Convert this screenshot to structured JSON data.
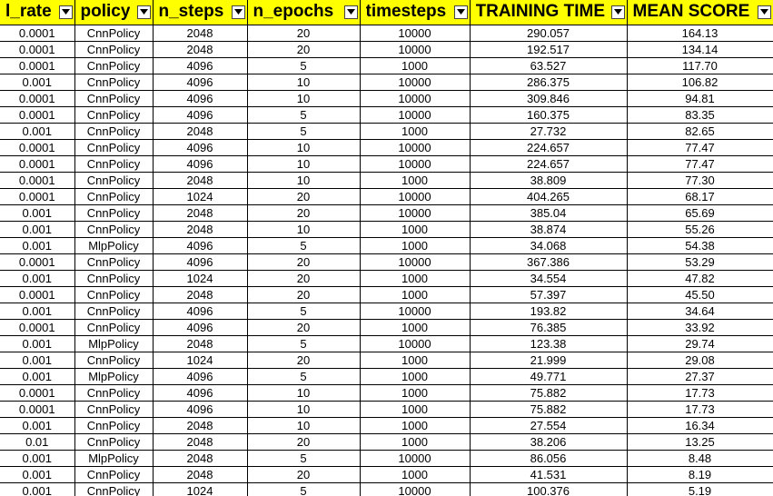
{
  "columns": [
    {
      "label": "l_rate",
      "name": "col-l-rate"
    },
    {
      "label": "policy",
      "name": "col-policy"
    },
    {
      "label": "n_steps",
      "name": "col-n-steps"
    },
    {
      "label": "n_epochs",
      "name": "col-n-epochs"
    },
    {
      "label": "timesteps",
      "name": "col-timesteps"
    },
    {
      "label": "TRAINING TIME",
      "name": "col-training-time"
    },
    {
      "label": "MEAN SCORE",
      "name": "col-mean-score"
    }
  ],
  "filter_icon": "dropdown-arrow-icon",
  "header_color": "#ffff00",
  "rows": [
    [
      "0.0001",
      "CnnPolicy",
      "2048",
      "20",
      "10000",
      "290.057",
      "164.13"
    ],
    [
      "0.0001",
      "CnnPolicy",
      "2048",
      "20",
      "10000",
      "192.517",
      "134.14"
    ],
    [
      "0.0001",
      "CnnPolicy",
      "4096",
      "5",
      "1000",
      "63.527",
      "117.70"
    ],
    [
      "0.001",
      "CnnPolicy",
      "4096",
      "10",
      "10000",
      "286.375",
      "106.82"
    ],
    [
      "0.0001",
      "CnnPolicy",
      "4096",
      "10",
      "10000",
      "309.846",
      "94.81"
    ],
    [
      "0.0001",
      "CnnPolicy",
      "4096",
      "5",
      "10000",
      "160.375",
      "83.35"
    ],
    [
      "0.001",
      "CnnPolicy",
      "2048",
      "5",
      "1000",
      "27.732",
      "82.65"
    ],
    [
      "0.0001",
      "CnnPolicy",
      "4096",
      "10",
      "10000",
      "224.657",
      "77.47"
    ],
    [
      "0.0001",
      "CnnPolicy",
      "4096",
      "10",
      "10000",
      "224.657",
      "77.47"
    ],
    [
      "0.0001",
      "CnnPolicy",
      "2048",
      "10",
      "1000",
      "38.809",
      "77.30"
    ],
    [
      "0.0001",
      "CnnPolicy",
      "1024",
      "20",
      "10000",
      "404.265",
      "68.17"
    ],
    [
      "0.001",
      "CnnPolicy",
      "2048",
      "20",
      "10000",
      "385.04",
      "65.69"
    ],
    [
      "0.001",
      "CnnPolicy",
      "2048",
      "10",
      "1000",
      "38.874",
      "55.26"
    ],
    [
      "0.001",
      "MlpPolicy",
      "4096",
      "5",
      "1000",
      "34.068",
      "54.38"
    ],
    [
      "0.0001",
      "CnnPolicy",
      "4096",
      "20",
      "10000",
      "367.386",
      "53.29"
    ],
    [
      "0.001",
      "CnnPolicy",
      "1024",
      "20",
      "1000",
      "34.554",
      "47.82"
    ],
    [
      "0.0001",
      "CnnPolicy",
      "2048",
      "20",
      "1000",
      "57.397",
      "45.50"
    ],
    [
      "0.001",
      "CnnPolicy",
      "4096",
      "5",
      "10000",
      "193.82",
      "34.64"
    ],
    [
      "0.0001",
      "CnnPolicy",
      "4096",
      "20",
      "1000",
      "76.385",
      "33.92"
    ],
    [
      "0.001",
      "MlpPolicy",
      "2048",
      "5",
      "10000",
      "123.38",
      "29.74"
    ],
    [
      "0.001",
      "CnnPolicy",
      "1024",
      "20",
      "1000",
      "21.999",
      "29.08"
    ],
    [
      "0.001",
      "MlpPolicy",
      "4096",
      "5",
      "1000",
      "49.771",
      "27.37"
    ],
    [
      "0.0001",
      "CnnPolicy",
      "4096",
      "10",
      "1000",
      "75.882",
      "17.73"
    ],
    [
      "0.0001",
      "CnnPolicy",
      "4096",
      "10",
      "1000",
      "75.882",
      "17.73"
    ],
    [
      "0.001",
      "CnnPolicy",
      "2048",
      "10",
      "1000",
      "27.554",
      "16.34"
    ],
    [
      "0.01",
      "CnnPolicy",
      "2048",
      "20",
      "1000",
      "38.206",
      "13.25"
    ],
    [
      "0.001",
      "MlpPolicy",
      "2048",
      "5",
      "10000",
      "86.056",
      "8.48"
    ],
    [
      "0.001",
      "CnnPolicy",
      "2048",
      "20",
      "1000",
      "41.531",
      "8.19"
    ],
    [
      "0.001",
      "CnnPolicy",
      "1024",
      "5",
      "10000",
      "100.376",
      "5.19"
    ]
  ]
}
